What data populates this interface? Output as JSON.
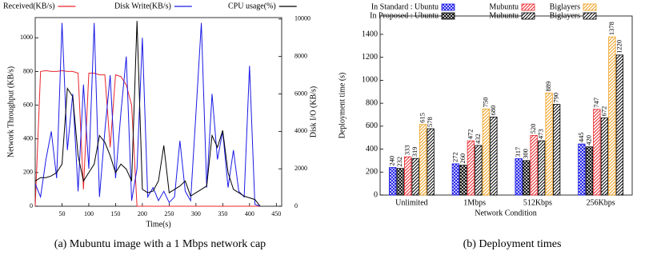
{
  "chart_data": [
    {
      "type": "line",
      "caption": "(a) Mubuntu image with a 1 Mbps network cap",
      "x_label": "Time(s)",
      "y_label": "Network Throughput (KB/s)",
      "y2_label": "Disk I/O (KB/s)",
      "x": [
        0,
        10,
        20,
        30,
        40,
        50,
        60,
        70,
        80,
        90,
        100,
        110,
        120,
        130,
        140,
        150,
        160,
        170,
        180,
        190,
        200,
        210,
        220,
        230,
        240,
        250,
        260,
        270,
        280,
        290,
        300,
        310,
        320,
        330,
        340,
        350,
        360,
        370,
        380,
        390,
        400,
        410,
        420
      ],
      "xlim": [
        0,
        460
      ],
      "xticks": [
        50,
        100,
        150,
        200,
        250,
        300,
        350,
        400,
        450
      ],
      "ylim": [
        0,
        1120
      ],
      "yticks": [
        0,
        200,
        400,
        600,
        800,
        1000
      ],
      "y2lim": [
        0,
        10080
      ],
      "y2ticks": [
        0,
        2000,
        4000,
        6000,
        8000,
        10000
      ],
      "series": [
        {
          "name": "Received(KB/s)",
          "color": "#e8262b",
          "values": [
            0,
            800,
            805,
            800,
            800,
            805,
            800,
            800,
            790,
            100,
            790,
            790,
            780,
            780,
            350,
            780,
            770,
            720,
            600,
            0,
            0,
            0,
            0,
            0,
            0,
            0,
            0,
            0,
            0,
            0,
            0,
            0,
            0,
            0,
            0,
            0,
            0,
            0,
            0,
            0,
            0,
            0,
            0
          ]
        },
        {
          "name": "Disk Write(KB/s)",
          "color": "#1a1ae6",
          "axis": "y2",
          "values": [
            1200,
            500,
            2500,
            4000,
            1500,
            9800,
            3000,
            6000,
            800,
            6500,
            2000,
            9800,
            500,
            4000,
            7000,
            1500,
            5000,
            8000,
            300,
            2000,
            9000,
            500,
            1000,
            300,
            800,
            200,
            500,
            3500,
            800,
            300,
            5000,
            9800,
            1000,
            6000,
            2500,
            4000,
            1000,
            3000,
            800,
            500,
            7500,
            100,
            0
          ]
        },
        {
          "name": "CPU usage(%)",
          "color": "#000000",
          "values": [
            150,
            170,
            170,
            180,
            200,
            250,
            700,
            650,
            300,
            150,
            200,
            250,
            420,
            380,
            300,
            200,
            250,
            220,
            150,
            1100,
            100,
            80,
            90,
            150,
            360,
            80,
            100,
            120,
            150,
            60,
            80,
            100,
            120,
            420,
            350,
            450,
            200,
            100,
            80,
            60,
            50,
            40,
            0
          ]
        }
      ]
    },
    {
      "type": "bar",
      "caption": "(b) Deployment times",
      "x_label": "Network Condition",
      "y_label": "Deployment time (s)",
      "categories": [
        "Unlimited",
        "1Mbps",
        "512Kbps",
        "256Kbps"
      ],
      "ylim": [
        0,
        1560
      ],
      "yticks": [
        0,
        200,
        400,
        600,
        800,
        1000,
        1200,
        1400
      ],
      "series": [
        {
          "name": "In Standard : Ubuntu",
          "color": "#1a1ae6",
          "pattern": "cross",
          "values": [
            240,
            272,
            317,
            445
          ]
        },
        {
          "name": "In Proposed : Ubuntu",
          "color": "#000000",
          "pattern": "cross",
          "values": [
            232,
            260,
            300,
            420
          ]
        },
        {
          "name": "Mubuntu",
          "color": "#e8262b",
          "pattern": "diag",
          "values": [
            333,
            472,
            520,
            747
          ]
        },
        {
          "name": "Mubuntu",
          "color": "#000000",
          "pattern": "diag",
          "values": [
            319,
            432,
            473,
            672
          ]
        },
        {
          "name": "Biglayers",
          "color": "#f0a020",
          "pattern": "diag",
          "values": [
            615,
            750,
            889,
            1378
          ]
        },
        {
          "name": "Biglayers",
          "color": "#000000",
          "pattern": "diag",
          "values": [
            578,
            680,
            790,
            1220
          ]
        }
      ]
    }
  ]
}
